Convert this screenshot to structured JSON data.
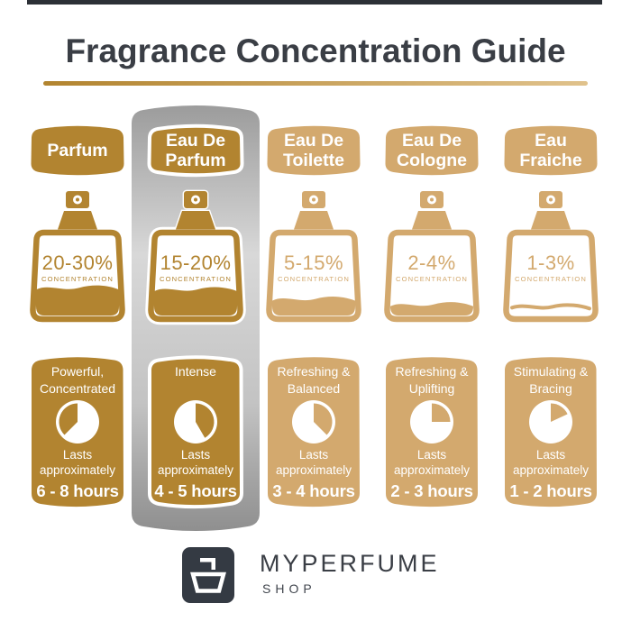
{
  "title": "Fragrance Concentration Guide",
  "columns": [
    {
      "name_lines": [
        "Parfum"
      ],
      "concentration": "20-30%",
      "concentration_label": "CONCENTRATION",
      "bottle_fill_ratio": 0.36,
      "liquid_style": "fill",
      "theme": "dark",
      "highlighted": false,
      "description_lines": [
        "Powerful,",
        "Concentrated"
      ],
      "lasts_lines": [
        "Lasts",
        "approximately"
      ],
      "duration": "6 - 8 hours",
      "pie_gold_wedge_deg": {
        "from": 225,
        "to": 360
      }
    },
    {
      "name_lines": [
        "Eau De",
        "Parfum"
      ],
      "concentration": "15-20%",
      "concentration_label": "CONCENTRATION",
      "bottle_fill_ratio": 0.34,
      "liquid_style": "fill",
      "theme": "dark",
      "highlighted": true,
      "description_lines": [
        "Intense"
      ],
      "lasts_lines": [
        "Lasts",
        "approximately"
      ],
      "duration": "4 - 5 hours",
      "pie_gold_wedge_deg": {
        "from": 0,
        "to": 150
      }
    },
    {
      "name_lines": [
        "Eau De",
        "Toilette"
      ],
      "concentration": "5-15%",
      "concentration_label": "CONCENTRATION",
      "bottle_fill_ratio": 0.22,
      "liquid_style": "fill",
      "theme": "light",
      "highlighted": false,
      "description_lines": [
        "Refreshing &",
        "Balanced"
      ],
      "lasts_lines": [
        "Lasts",
        "approximately"
      ],
      "duration": "3 - 4 hours",
      "pie_gold_wedge_deg": {
        "from": 0,
        "to": 135
      }
    },
    {
      "name_lines": [
        "Eau De",
        "Cologne"
      ],
      "concentration": "2-4%",
      "concentration_label": "CONCENTRATION",
      "bottle_fill_ratio": 0.15,
      "liquid_style": "fill",
      "theme": "light",
      "highlighted": false,
      "description_lines": [
        "Refreshing &",
        "Uplifting"
      ],
      "lasts_lines": [
        "Lasts",
        "approximately"
      ],
      "duration": "2 - 3 hours",
      "pie_gold_wedge_deg": {
        "from": 0,
        "to": 90
      }
    },
    {
      "name_lines": [
        "Eau",
        "Fraiche"
      ],
      "concentration": "1-3%",
      "concentration_label": "CONCENTRATION",
      "bottle_fill_ratio": 0.11,
      "liquid_style": "line",
      "theme": "light",
      "highlighted": false,
      "description_lines": [
        "Stimulating &",
        "Bracing"
      ],
      "lasts_lines": [
        "Lasts",
        "approximately"
      ],
      "duration": "1 - 2 hours",
      "pie_gold_wedge_deg": {
        "from": 0,
        "to": 65
      }
    }
  ],
  "footer": {
    "brand": "MYPERFUME",
    "sub": "SHOP"
  },
  "colors": {
    "dark_gold": "#b28430",
    "light_gold": "#d3a96e",
    "text_dark": "#3a3e45",
    "logo_dark": "#343a43",
    "frame_line": "#2c3036",
    "underline_from": "#b2842f",
    "underline_to": "#e0c28c",
    "silver_stops": [
      "#9c9c9c",
      "#d8d8d8",
      "#c3c3c3",
      "#8f8f8f"
    ]
  }
}
